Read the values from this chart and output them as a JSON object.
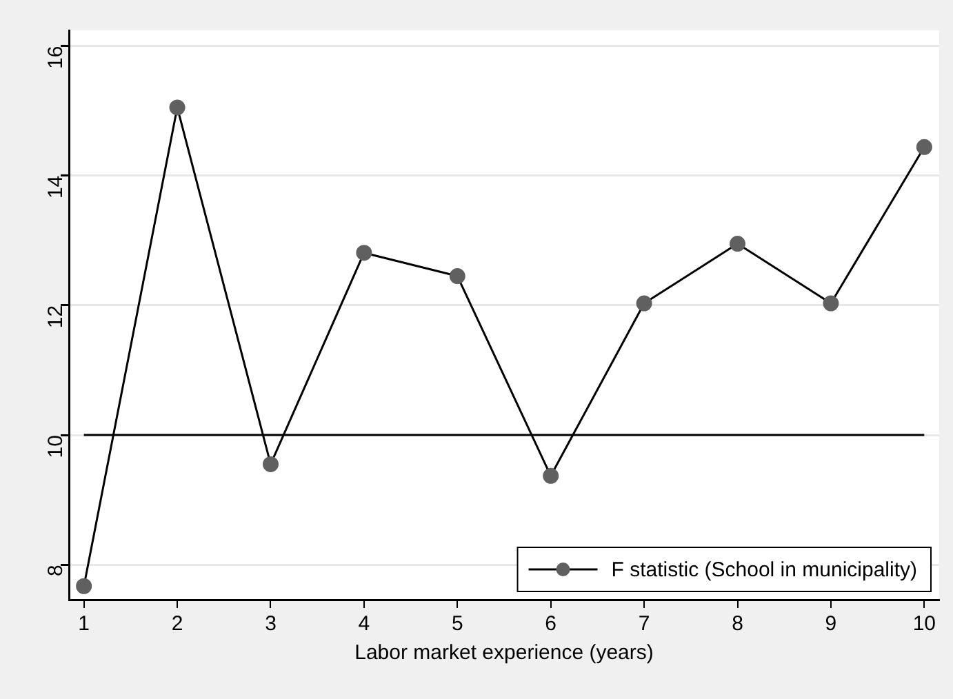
{
  "chart_data": {
    "type": "line",
    "xlabel": "Labor market experience (years)",
    "x": [
      1,
      2,
      3,
      4,
      5,
      6,
      7,
      8,
      9,
      10
    ],
    "series": [
      {
        "name": "F statistic (School in municipality)",
        "color": "#000000",
        "values": [
          7.67,
          15.05,
          9.55,
          12.81,
          12.45,
          9.37,
          12.03,
          12.95,
          12.03,
          14.44
        ]
      }
    ],
    "xlim": [
      0.84,
      10.16
    ],
    "xticks": [
      1,
      2,
      3,
      4,
      5,
      6,
      7,
      8,
      9,
      10
    ],
    "ylim": [
      7.46,
      16.24
    ],
    "yticks": [
      8,
      10,
      12,
      14,
      16
    ],
    "ref_lines": [
      {
        "axis": "y",
        "value": 10,
        "color": "#000000"
      }
    ],
    "grid": "y",
    "legend": "bottom right",
    "marker": "circle",
    "line_style": "solid"
  }
}
